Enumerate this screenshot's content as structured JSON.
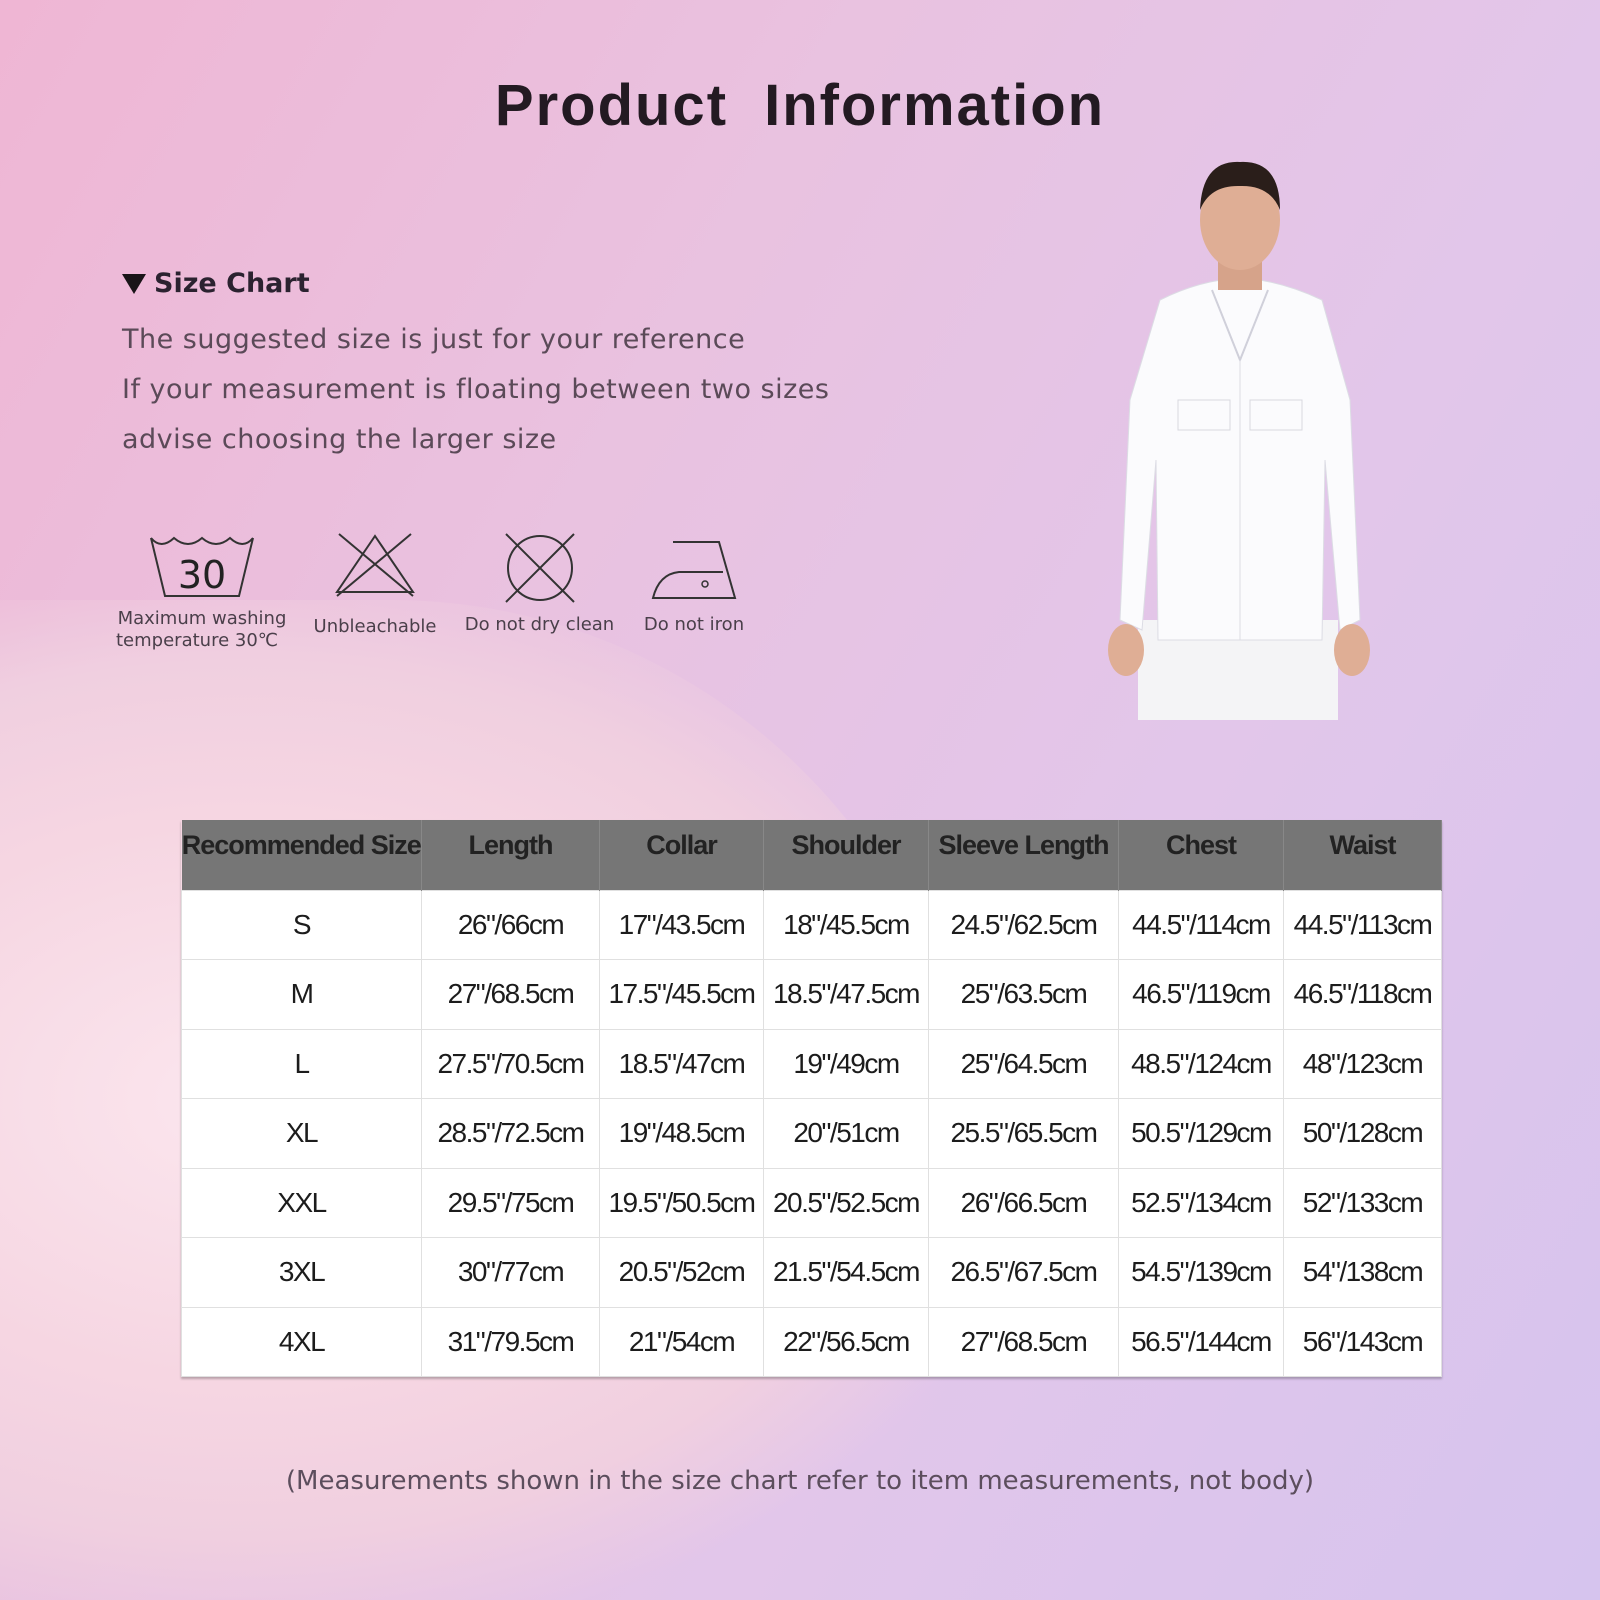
{
  "title": "Product  Information",
  "size_chart": {
    "heading": "Size Chart",
    "notes": [
      "The suggested size is just for your reference",
      "If your measurement is floating between two sizes",
      "advise choosing the larger size"
    ]
  },
  "care": [
    {
      "icon": "wash-30-icon",
      "number": "30",
      "label1": "Maximum washing",
      "label2": "temperature 30℃"
    },
    {
      "icon": "no-bleach-icon",
      "label1": "Unbleachable"
    },
    {
      "icon": "no-dry-clean-icon",
      "label1": "Do not dry clean"
    },
    {
      "icon": "no-iron-icon",
      "label1": "Do not iron"
    }
  ],
  "table": {
    "headers": [
      "Recommended Size",
      "Length",
      "Collar",
      "Shoulder",
      "Sleeve Length",
      "Chest",
      "Waist"
    ],
    "rows": [
      [
        "S",
        "26\"/66cm",
        "17\"/43.5cm",
        "18\"/45.5cm",
        "24.5\"/62.5cm",
        "44.5\"/114cm",
        "44.5\"/113cm"
      ],
      [
        "M",
        "27\"/68.5cm",
        "17.5\"/45.5cm",
        "18.5\"/47.5cm",
        "25\"/63.5cm",
        "46.5\"/119cm",
        "46.5\"/118cm"
      ],
      [
        "L",
        "27.5\"/70.5cm",
        "18.5\"/47cm",
        "19\"/49cm",
        "25\"/64.5cm",
        "48.5\"/124cm",
        "48\"/123cm"
      ],
      [
        "XL",
        "28.5\"/72.5cm",
        "19\"/48.5cm",
        "20\"/51cm",
        "25.5\"/65.5cm",
        "50.5\"/129cm",
        "50\"/128cm"
      ],
      [
        "XXL",
        "29.5\"/75cm",
        "19.5\"/50.5cm",
        "20.5\"/52.5cm",
        "26\"/66.5cm",
        "52.5\"/134cm",
        "52\"/133cm"
      ],
      [
        "3XL",
        "30\"/77cm",
        "20.5\"/52cm",
        "21.5\"/54.5cm",
        "26.5\"/67.5cm",
        "54.5\"/139cm",
        "54\"/138cm"
      ],
      [
        "4XL",
        "31\"/79.5cm",
        "21\"/54cm",
        "22\"/56.5cm",
        "27\"/68.5cm",
        "56.5\"/144cm",
        "56\"/143cm"
      ]
    ]
  },
  "footnote": "(Measurements shown in the size chart refer to item measurements, not body)"
}
